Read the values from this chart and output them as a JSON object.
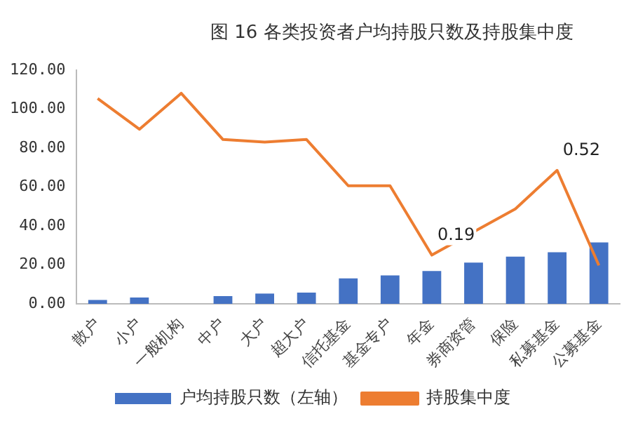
{
  "chart_data": {
    "type": "bar",
    "title": "图 16 各类投资者户均持股只数及持股集中度",
    "categories": [
      "散户",
      "小户",
      "一般机构",
      "中户",
      "大户",
      "超大户",
      "信托基金",
      "基金专户",
      "年金",
      "券商资管",
      "保险",
      "私募基金",
      "公募基金"
    ],
    "series": [
      {
        "name": "户均持股只数（左轴）",
        "type": "bar",
        "color": "#4472c4",
        "values": [
          2.0,
          3.3,
          0,
          4.0,
          5.3,
          5.8,
          13.1,
          14.6,
          16.9,
          21.2,
          24.3,
          26.5,
          31.6
        ]
      },
      {
        "name": "持股集中度",
        "type": "line",
        "axis": "y2",
        "color": "#ed7d31",
        "values": [
          0.8,
          0.68,
          0.82,
          0.64,
          0.63,
          0.64,
          0.46,
          0.46,
          0.19,
          0.28,
          0.37,
          0.52,
          0.15
        ],
        "value_labels": [
          null,
          null,
          null,
          null,
          null,
          null,
          null,
          null,
          "0.19",
          null,
          null,
          "0.52",
          null
        ]
      }
    ],
    "ylim": [
      0,
      120
    ],
    "yticks": [
      {
        "value": 0,
        "label": "0.00"
      },
      {
        "value": 20,
        "label": "20.00"
      },
      {
        "value": 40,
        "label": "40.00"
      },
      {
        "value": 60,
        "label": "60.00"
      },
      {
        "value": 80,
        "label": "80.00"
      },
      {
        "value": 100,
        "label": "100.00"
      },
      {
        "value": 120,
        "label": "120.00"
      }
    ],
    "y2lim": [
      0,
      0.91
    ],
    "grid": false,
    "legend": "bottom",
    "marker": "none"
  }
}
